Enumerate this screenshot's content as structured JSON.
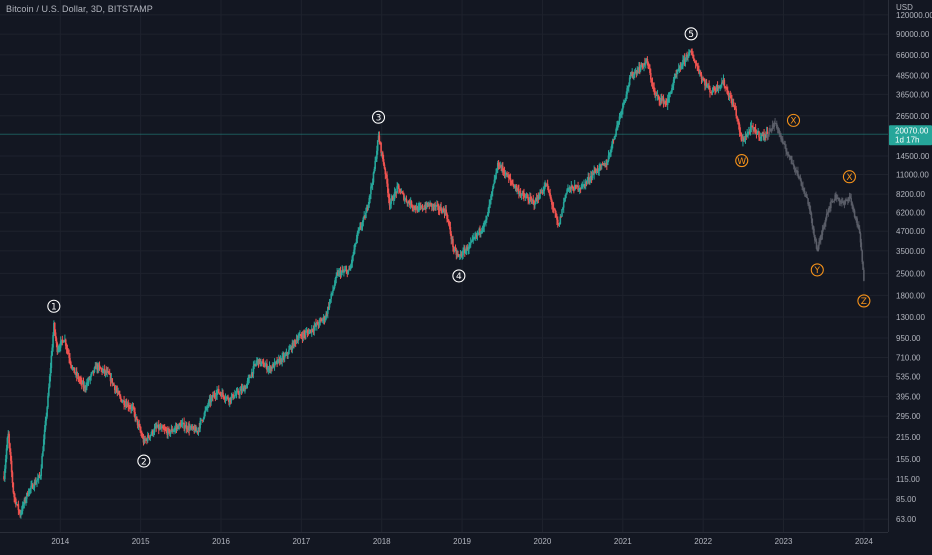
{
  "header": {
    "symbol_title": "Bitcoin / U.S. Dollar, 3D, BITSTAMP"
  },
  "price_axis": {
    "currency": "USD",
    "ticks": [
      "120000.00",
      "90000.00",
      "66000.00",
      "48500.00",
      "36500.00",
      "26500.00",
      "14500.00",
      "11000.00",
      "8200.00",
      "6200.00",
      "4700.00",
      "3500.00",
      "2500.00",
      "1800.00",
      "1300.00",
      "950.00",
      "710.00",
      "535.00",
      "395.00",
      "295.00",
      "215.00",
      "155.00",
      "115.00",
      "85.00",
      "63.00"
    ],
    "last_price": "20070.00",
    "countdown": "1d 17h",
    "last_price_color": "#26a69a"
  },
  "time_axis": {
    "ticks": [
      "2014",
      "2015",
      "2016",
      "2017",
      "2018",
      "2019",
      "2020",
      "2021",
      "2022",
      "2023",
      "2024"
    ]
  },
  "colors": {
    "up": "#26a69a",
    "down": "#ef5350",
    "wave": "#ffffff",
    "corrective": "#f7931a",
    "projection": "#5d606b"
  },
  "chart_data": {
    "type": "candlestick",
    "symbol": "BTCUSD",
    "timeframe": "3D",
    "exchange": "BITSTAMP",
    "y_scale": "log",
    "ylim": [
      52,
      150000
    ],
    "xlim": [
      2013.25,
      2024.3
    ],
    "price_path": [
      [
        2013.3,
        120
      ],
      [
        2013.35,
        230
      ],
      [
        2013.42,
        90
      ],
      [
        2013.5,
        68
      ],
      [
        2013.6,
        95
      ],
      [
        2013.75,
        120
      ],
      [
        2013.85,
        400
      ],
      [
        2013.92,
        1150
      ],
      [
        2013.96,
        800
      ],
      [
        2014.05,
        950
      ],
      [
        2014.15,
        600
      ],
      [
        2014.3,
        450
      ],
      [
        2014.45,
        620
      ],
      [
        2014.6,
        550
      ],
      [
        2014.75,
        380
      ],
      [
        2014.9,
        330
      ],
      [
        2015.04,
        200
      ],
      [
        2015.2,
        250
      ],
      [
        2015.35,
        230
      ],
      [
        2015.5,
        260
      ],
      [
        2015.7,
        235
      ],
      [
        2015.85,
        360
      ],
      [
        2015.95,
        430
      ],
      [
        2016.1,
        380
      ],
      [
        2016.3,
        450
      ],
      [
        2016.45,
        680
      ],
      [
        2016.6,
        600
      ],
      [
        2016.8,
        720
      ],
      [
        2016.95,
        950
      ],
      [
        2017.1,
        1050
      ],
      [
        2017.3,
        1300
      ],
      [
        2017.45,
        2500
      ],
      [
        2017.6,
        2600
      ],
      [
        2017.7,
        4500
      ],
      [
        2017.8,
        6000
      ],
      [
        2017.9,
        11000
      ],
      [
        2017.96,
        19500
      ],
      [
        2018.05,
        11000
      ],
      [
        2018.1,
        7000
      ],
      [
        2018.2,
        9000
      ],
      [
        2018.3,
        7500
      ],
      [
        2018.45,
        6500
      ],
      [
        2018.6,
        7000
      ],
      [
        2018.8,
        6300
      ],
      [
        2018.9,
        3500
      ],
      [
        2018.96,
        3200
      ],
      [
        2019.1,
        3800
      ],
      [
        2019.3,
        5500
      ],
      [
        2019.45,
        13000
      ],
      [
        2019.6,
        10000
      ],
      [
        2019.75,
        8000
      ],
      [
        2019.9,
        7200
      ],
      [
        2020.05,
        9500
      ],
      [
        2020.2,
        5000
      ],
      [
        2020.3,
        8800
      ],
      [
        2020.5,
        9200
      ],
      [
        2020.65,
        11500
      ],
      [
        2020.8,
        13000
      ],
      [
        2020.95,
        25000
      ],
      [
        2021.1,
        48000
      ],
      [
        2021.3,
        60000
      ],
      [
        2021.4,
        36000
      ],
      [
        2021.55,
        32000
      ],
      [
        2021.65,
        47000
      ],
      [
        2021.8,
        66000
      ],
      [
        2021.85,
        68000
      ],
      [
        2022.0,
        45000
      ],
      [
        2022.1,
        38000
      ],
      [
        2022.25,
        44000
      ],
      [
        2022.4,
        29000
      ],
      [
        2022.48,
        18000
      ],
      [
        2022.6,
        22000
      ],
      [
        2022.72,
        19500
      ],
      [
        2022.8,
        20070
      ]
    ],
    "projection_path": [
      [
        2022.8,
        20070
      ],
      [
        2022.9,
        24000
      ],
      [
        2023.0,
        17000
      ],
      [
        2023.15,
        12000
      ],
      [
        2023.3,
        7500
      ],
      [
        2023.42,
        3500
      ],
      [
        2023.55,
        6500
      ],
      [
        2023.65,
        8000
      ],
      [
        2023.75,
        7000
      ],
      [
        2023.82,
        8000
      ],
      [
        2023.95,
        4500
      ],
      [
        2024.0,
        2200
      ]
    ],
    "wave_labels": [
      {
        "label": "1",
        "x": 2013.92,
        "y": 1150,
        "pos": "above",
        "style": "impulse"
      },
      {
        "label": "2",
        "x": 2015.04,
        "y": 200,
        "pos": "below",
        "style": "impulse"
      },
      {
        "label": "3",
        "x": 2017.96,
        "y": 19500,
        "pos": "above",
        "style": "impulse"
      },
      {
        "label": "4",
        "x": 2018.96,
        "y": 3200,
        "pos": "below",
        "style": "impulse"
      },
      {
        "label": "5",
        "x": 2021.85,
        "y": 68000,
        "pos": "above",
        "style": "impulse"
      },
      {
        "label": "W",
        "x": 2022.48,
        "y": 18000,
        "pos": "below",
        "style": "corrective"
      },
      {
        "label": "X",
        "x": 2022.9,
        "y": 24000,
        "pos": "right",
        "style": "corrective"
      },
      {
        "label": "Y",
        "x": 2023.42,
        "y": 3500,
        "pos": "below",
        "style": "corrective"
      },
      {
        "label": "X",
        "x": 2023.82,
        "y": 8000,
        "pos": "above",
        "style": "corrective"
      },
      {
        "label": "Z",
        "x": 2024.0,
        "y": 2200,
        "pos": "below",
        "style": "corrective"
      }
    ]
  }
}
